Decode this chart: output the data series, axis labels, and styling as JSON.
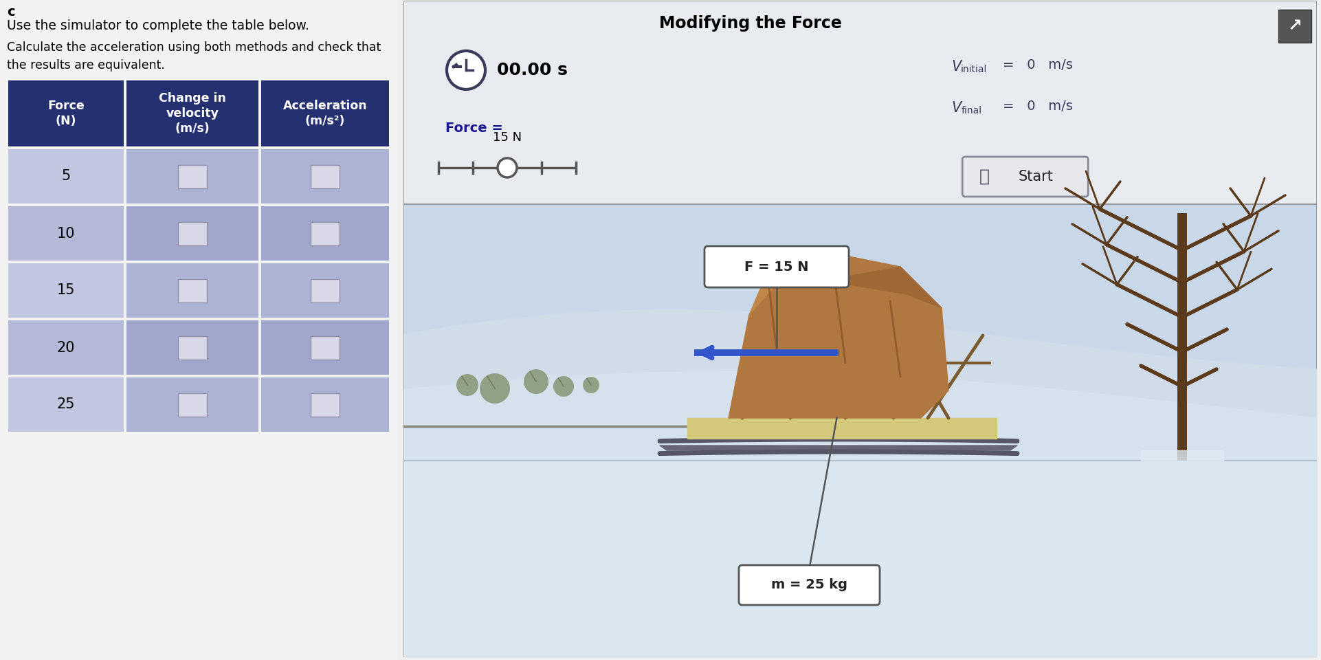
{
  "title_left_c": "c",
  "text1": "Use the simulator to complete the table below.",
  "text2": "Calculate the acceleration using both methods and check that\nthe results are equivalent.",
  "col_headers": [
    "Force\n(N)",
    "Change in\nvelocity\n(m/s)",
    "Acceleration\n(m/s²)"
  ],
  "row_values": [
    "5",
    "10",
    "15",
    "20",
    "25"
  ],
  "simulator_title": "Modifying the Force",
  "time_display": "00.00 s",
  "force_label": "Force =",
  "force_value": "15 N",
  "v_initial": "V",
  "v_initial_sub": "initial",
  "v_initial_rest": " =   0   m/s",
  "v_final": "V",
  "v_final_sub": "final",
  "v_final_rest": " =   0   m/s",
  "start_button": "Start",
  "f_label": "F = 15 N",
  "m_label": "m = 25 kg",
  "header_bg": "#253070",
  "header_text": "#ffffff",
  "row_even_col0": "#c2c6e0",
  "row_even_col12": "#adb3d4",
  "row_odd_col0": "#b4b9d8",
  "row_odd_col12": "#a0a6cc",
  "sim_top_bg": "#e8ecf0",
  "sim_scene_sky": "#c5d8e8",
  "sim_scene_snow": "#dce8f0",
  "sim_scene_hill": "#cddce8",
  "background_color": "#f0f0f0",
  "table_left_bg": "#ffffff",
  "sim_border": "#aaaaaa"
}
